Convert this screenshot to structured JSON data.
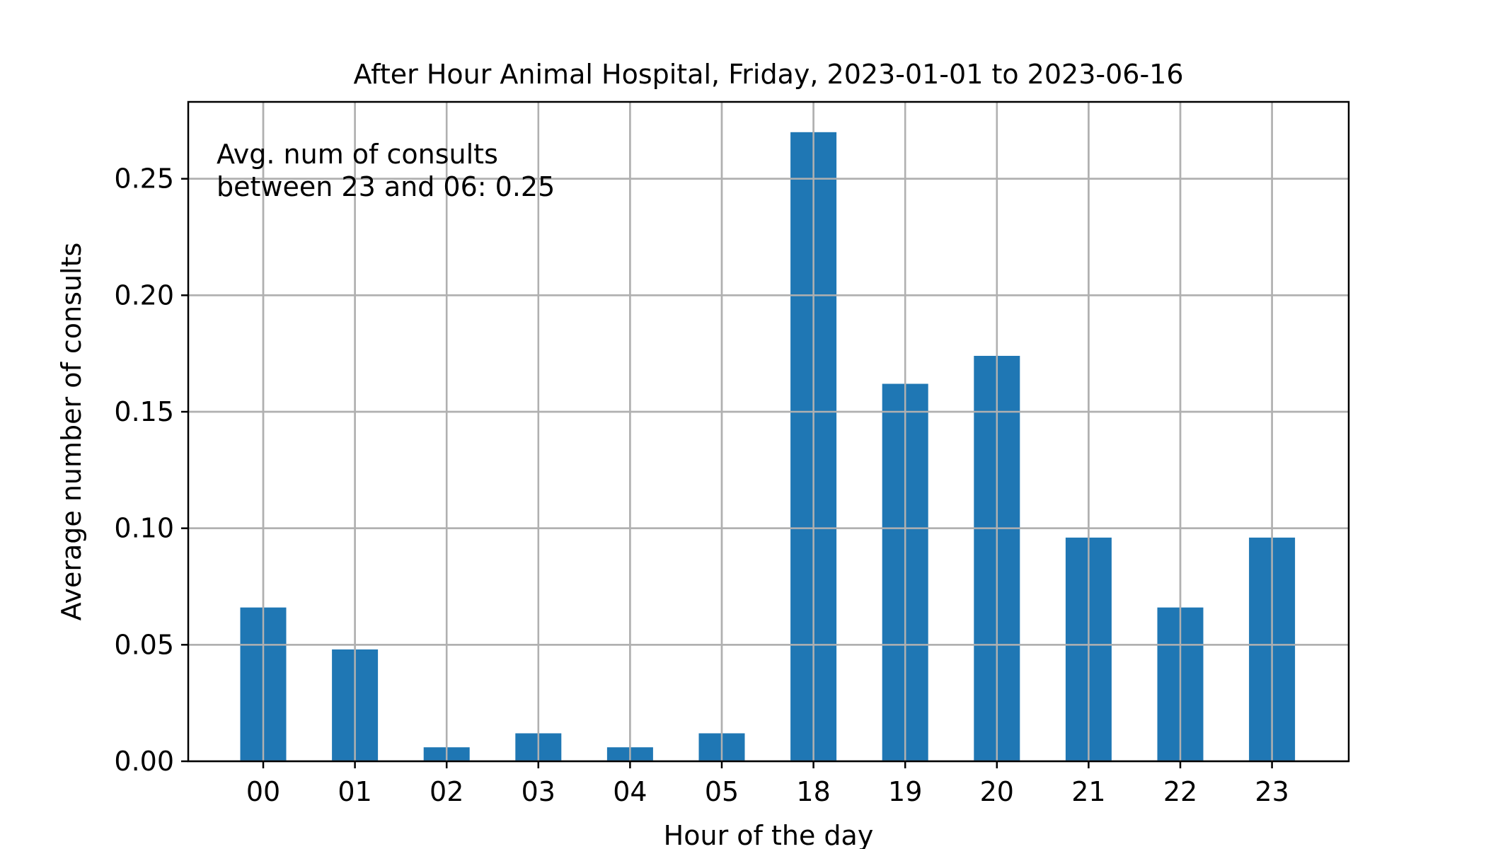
{
  "chart_data": {
    "type": "bar",
    "title": "After Hour Animal Hospital, Friday, 2023-01-01 to 2023-06-16",
    "xlabel": "Hour of the day",
    "ylabel": "Average number of consults",
    "categories": [
      "00",
      "01",
      "02",
      "03",
      "04",
      "05",
      "18",
      "19",
      "20",
      "21",
      "22",
      "23"
    ],
    "values": [
      0.066,
      0.048,
      0.006,
      0.012,
      0.006,
      0.012,
      0.27,
      0.162,
      0.174,
      0.096,
      0.066,
      0.096
    ],
    "ylim": [
      0,
      0.283
    ],
    "yticks": [
      0.0,
      0.05,
      0.1,
      0.15,
      0.2,
      0.25
    ],
    "ytick_labels": [
      "0.00",
      "0.05",
      "0.10",
      "0.15",
      "0.20",
      "0.25"
    ],
    "annotation": [
      "Avg. num of consults",
      "between 23 and 06: 0.25"
    ],
    "grid": true,
    "bar_color": "#1f77b4",
    "grid_color": "#b0b0b0"
  }
}
